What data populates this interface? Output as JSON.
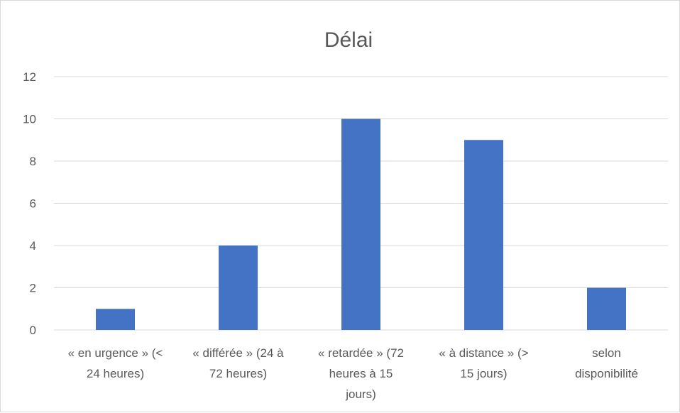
{
  "chart_data": {
    "type": "bar",
    "title": "Délai",
    "categories": [
      "« en urgence » (< 24 heures)",
      "« différée » (24 à 72 heures)",
      "« retardée » (72 heures à 15 jours)",
      "« à distance » (> 15 jours)",
      "selon disponibilité"
    ],
    "category_lines": [
      [
        "« en urgence » (<",
        "24 heures)"
      ],
      [
        "« différée » (24 à",
        "72 heures)"
      ],
      [
        "« retardée » (72",
        "heures à 15",
        "jours)"
      ],
      [
        "« à distance » (>",
        "15 jours)"
      ],
      [
        "selon",
        "disponibilité"
      ]
    ],
    "values": [
      1,
      4,
      10,
      9,
      2
    ],
    "ylim": [
      0,
      12
    ],
    "yticks": [
      0,
      2,
      4,
      6,
      8,
      10,
      12
    ],
    "xlabel": "",
    "ylabel": "",
    "grid": true,
    "legend": "none",
    "bar_color": "#4472c4"
  }
}
